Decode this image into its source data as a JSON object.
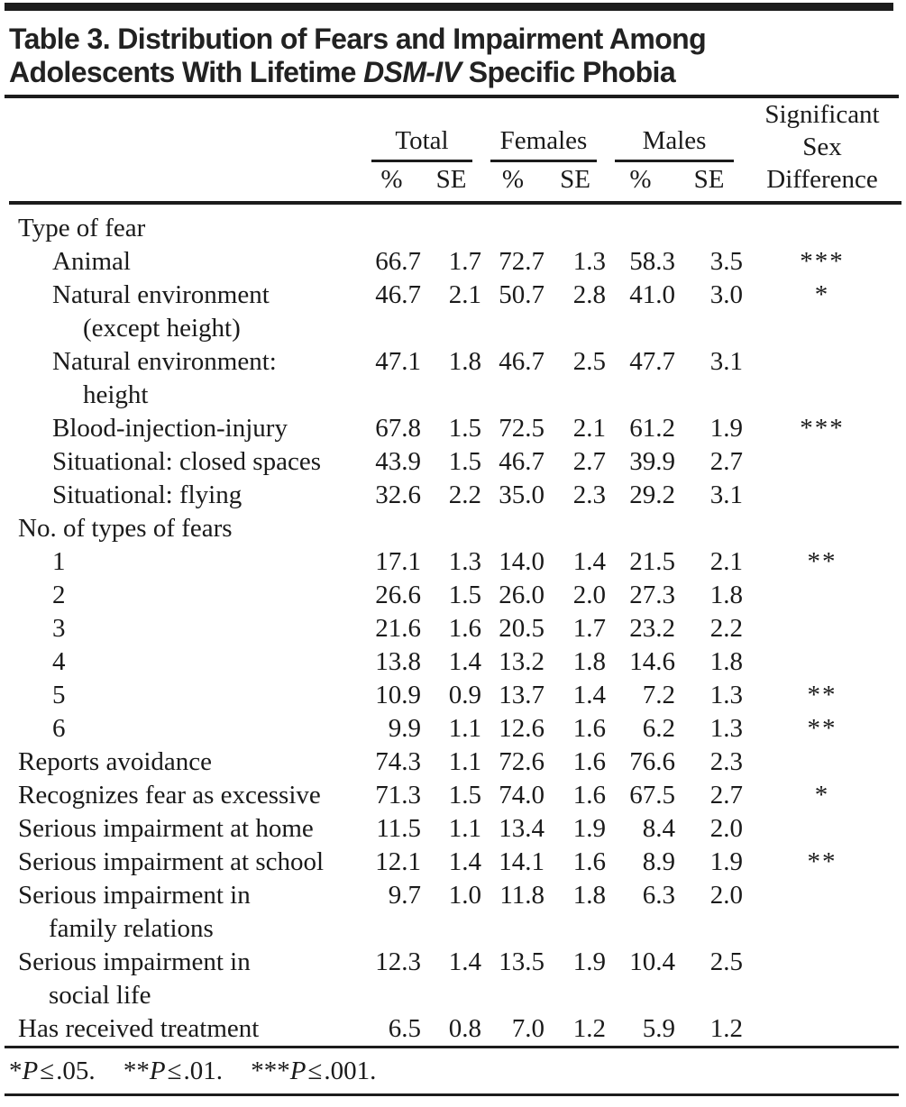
{
  "colors": {
    "ink": "#1a1a1a",
    "rule": "#1c1c1c"
  },
  "title": {
    "line1": "Table 3. Distribution of Fears and Impairment Among",
    "line2_pre": "Adolescents With Lifetime ",
    "line2_italic": "DSM-IV",
    "line2_post": " Specific Phobia"
  },
  "table": {
    "col_groups": [
      {
        "label": "Total"
      },
      {
        "label": "Females"
      },
      {
        "label": "Males"
      }
    ],
    "subheaders": [
      "%",
      "SE",
      "%",
      "SE",
      "%",
      "SE"
    ],
    "sig_header_lines": [
      "Significant",
      "Sex",
      "Difference"
    ],
    "rows": [
      {
        "label": "Type of fear",
        "indent": 0,
        "values": [],
        "sig": ""
      },
      {
        "label": "Animal",
        "indent": 1,
        "values": [
          "66.7",
          "1.7",
          "72.7",
          "1.3",
          "58.3",
          "3.5"
        ],
        "sig": "***"
      },
      {
        "label": "Natural environment\n(except height)",
        "indent": 1,
        "values": [
          "46.7",
          "2.1",
          "50.7",
          "2.8",
          "41.0",
          "3.0"
        ],
        "sig": "*"
      },
      {
        "label": "Natural environment:\nheight",
        "indent": 1,
        "values": [
          "47.1",
          "1.8",
          "46.7",
          "2.5",
          "47.7",
          "3.1"
        ],
        "sig": ""
      },
      {
        "label": "Blood-injection-injury",
        "indent": 1,
        "values": [
          "67.8",
          "1.5",
          "72.5",
          "2.1",
          "61.2",
          "1.9"
        ],
        "sig": "***"
      },
      {
        "label": "Situational: closed spaces",
        "indent": 1,
        "values": [
          "43.9",
          "1.5",
          "46.7",
          "2.7",
          "39.9",
          "2.7"
        ],
        "sig": ""
      },
      {
        "label": "Situational: flying",
        "indent": 1,
        "values": [
          "32.6",
          "2.2",
          "35.0",
          "2.3",
          "29.2",
          "3.1"
        ],
        "sig": ""
      },
      {
        "label": "No. of types of fears",
        "indent": 0,
        "values": [],
        "sig": ""
      },
      {
        "label": "1",
        "indent": 1,
        "values": [
          "17.1",
          "1.3",
          "14.0",
          "1.4",
          "21.5",
          "2.1"
        ],
        "sig": "**"
      },
      {
        "label": "2",
        "indent": 1,
        "values": [
          "26.6",
          "1.5",
          "26.0",
          "2.0",
          "27.3",
          "1.8"
        ],
        "sig": ""
      },
      {
        "label": "3",
        "indent": 1,
        "values": [
          "21.6",
          "1.6",
          "20.5",
          "1.7",
          "23.2",
          "2.2"
        ],
        "sig": ""
      },
      {
        "label": "4",
        "indent": 1,
        "values": [
          "13.8",
          "1.4",
          "13.2",
          "1.8",
          "14.6",
          "1.8"
        ],
        "sig": ""
      },
      {
        "label": "5",
        "indent": 1,
        "values": [
          "10.9",
          "0.9",
          "13.7",
          "1.4",
          "7.2",
          "1.3"
        ],
        "sig": "**"
      },
      {
        "label": "6",
        "indent": 1,
        "values": [
          "9.9",
          "1.1",
          "12.6",
          "1.6",
          "6.2",
          "1.3"
        ],
        "sig": "**"
      },
      {
        "label": "Reports avoidance",
        "indent": 0,
        "values": [
          "74.3",
          "1.1",
          "72.6",
          "1.6",
          "76.6",
          "2.3"
        ],
        "sig": ""
      },
      {
        "label": "Recognizes fear as excessive",
        "indent": 0,
        "values": [
          "71.3",
          "1.5",
          "74.0",
          "1.6",
          "67.5",
          "2.7"
        ],
        "sig": "*"
      },
      {
        "label": "Serious impairment at home",
        "indent": 0,
        "values": [
          "11.5",
          "1.1",
          "13.4",
          "1.9",
          "8.4",
          "2.0"
        ],
        "sig": ""
      },
      {
        "label": "Serious impairment at school",
        "indent": 0,
        "values": [
          "12.1",
          "1.4",
          "14.1",
          "1.6",
          "8.9",
          "1.9"
        ],
        "sig": "**"
      },
      {
        "label": "Serious impairment in\nfamily relations",
        "indent": 0,
        "values": [
          "9.7",
          "1.0",
          "11.8",
          "1.8",
          "6.3",
          "2.0"
        ],
        "sig": ""
      },
      {
        "label": "Serious impairment in\nsocial life",
        "indent": 0,
        "values": [
          "12.3",
          "1.4",
          "13.5",
          "1.9",
          "10.4",
          "2.5"
        ],
        "sig": ""
      },
      {
        "label": "Has received treatment",
        "indent": 0,
        "values": [
          "6.5",
          "0.8",
          "7.0",
          "1.2",
          "5.9",
          "1.2"
        ],
        "sig": ""
      }
    ]
  },
  "footnote": {
    "items": [
      {
        "stars": "*",
        "p": "P",
        "rel": "≤",
        "rest": ".05."
      },
      {
        "stars": "**",
        "p": "P",
        "rel": "≤",
        "rest": ".01."
      },
      {
        "stars": "***",
        "p": "P",
        "rel": "≤",
        "rest": ".001."
      }
    ]
  }
}
